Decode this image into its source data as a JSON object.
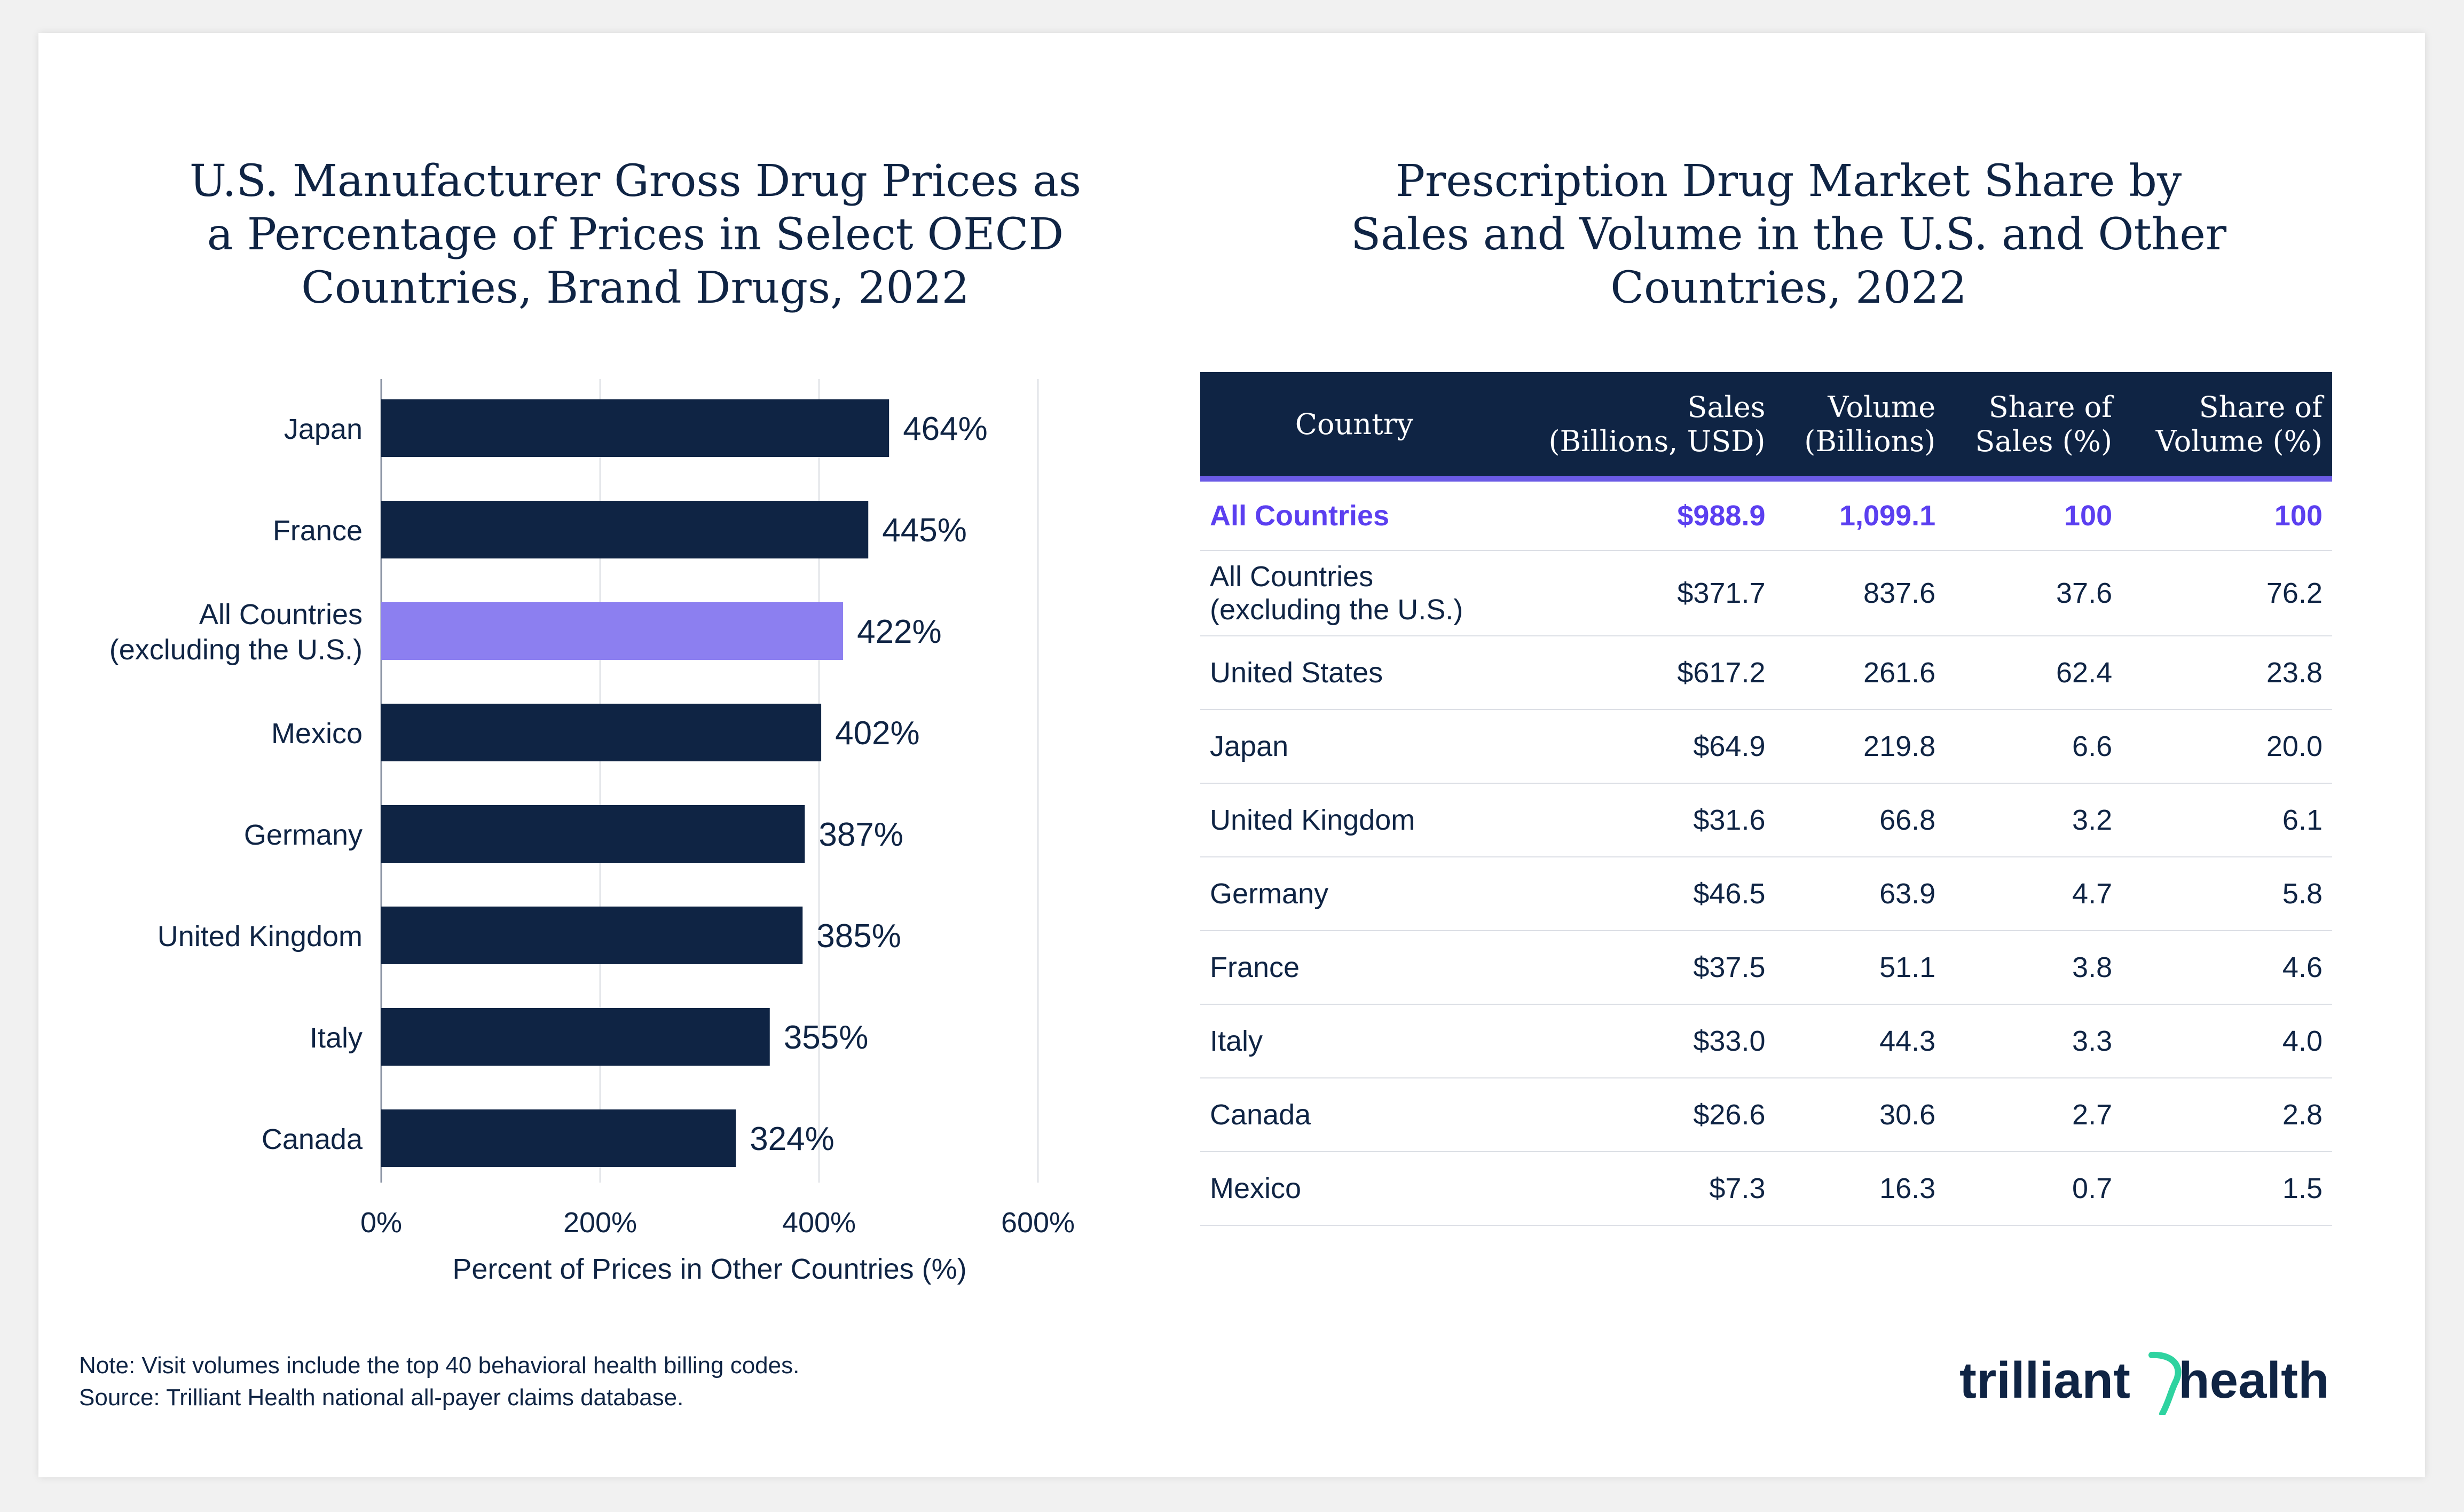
{
  "chart_data": {
    "type": "bar",
    "orientation": "horizontal",
    "title": "U.S. Manufacturer Gross Drug Prices as\na Percentage of Prices in Select OECD\nCountries, Brand Drugs, 2022",
    "categories": [
      "Japan",
      "France",
      "All Countries\n(excluding the U.S.)",
      "Mexico",
      "Germany",
      "United Kingdom",
      "Italy",
      "Canada"
    ],
    "values": [
      464,
      445,
      422,
      402,
      387,
      385,
      355,
      324
    ],
    "value_labels": [
      "464%",
      "445%",
      "422%",
      "402%",
      "387%",
      "385%",
      "355%",
      "324%"
    ],
    "highlight_index": 2,
    "xlim": [
      0,
      600
    ],
    "xticks": [
      0,
      200,
      400,
      600
    ],
    "xtick_labels": [
      "0%",
      "200%",
      "400%",
      "600%"
    ],
    "xlabel": "Percent of Prices in Other Countries (%)",
    "ylabel": "",
    "grid": true,
    "colors": {
      "bar": "#0f2444",
      "highlight": "#8c7ff0",
      "text": "#0f2444",
      "grid": "#e2e4e8"
    }
  },
  "table": {
    "title": "Prescription Drug Market Share by\nSales and Volume in the U.S. and Other\nCountries, 2022",
    "headers": [
      "Country",
      "Sales\n(Billions, USD)",
      "Volume\n(Billions)",
      "Share of\nSales (%)",
      "Share of\nVolume (%)"
    ],
    "rows": [
      [
        "All Countries",
        "$988.9",
        "1,099.1",
        "100",
        "100"
      ],
      [
        "All Countries\n(excluding the U.S.)",
        "$371.7",
        "837.6",
        "37.6",
        "76.2"
      ],
      [
        "United States",
        "$617.2",
        "261.6",
        "62.4",
        "23.8"
      ],
      [
        "Japan",
        "$64.9",
        "219.8",
        "6.6",
        "20.0"
      ],
      [
        "United Kingdom",
        "$31.6",
        "66.8",
        "3.2",
        "6.1"
      ],
      [
        "Germany",
        "$46.5",
        "63.9",
        "4.7",
        "5.8"
      ],
      [
        "France",
        "$37.5",
        "51.1",
        "3.8",
        "4.6"
      ],
      [
        "Italy",
        "$33.0",
        "44.3",
        "3.3",
        "4.0"
      ],
      [
        "Canada",
        "$26.6",
        "30.6",
        "2.7",
        "2.8"
      ],
      [
        "Mexico",
        "$7.3",
        "16.3",
        "0.7",
        "1.5"
      ]
    ],
    "highlight_row": 0,
    "colors": {
      "header_bg": "#0f2444",
      "header_rule": "#6b5be6",
      "highlight_text": "#5b3ff0"
    }
  },
  "footer": {
    "note": "Note: Visit volumes include the top 40 behavioral health billing codes.",
    "source": "Source: Trilliant Health national all-payer claims database."
  },
  "logo": {
    "left": "trilliant",
    "right": "health",
    "colors": {
      "text": "#0f2444",
      "accent": "#2fd3a0"
    }
  }
}
